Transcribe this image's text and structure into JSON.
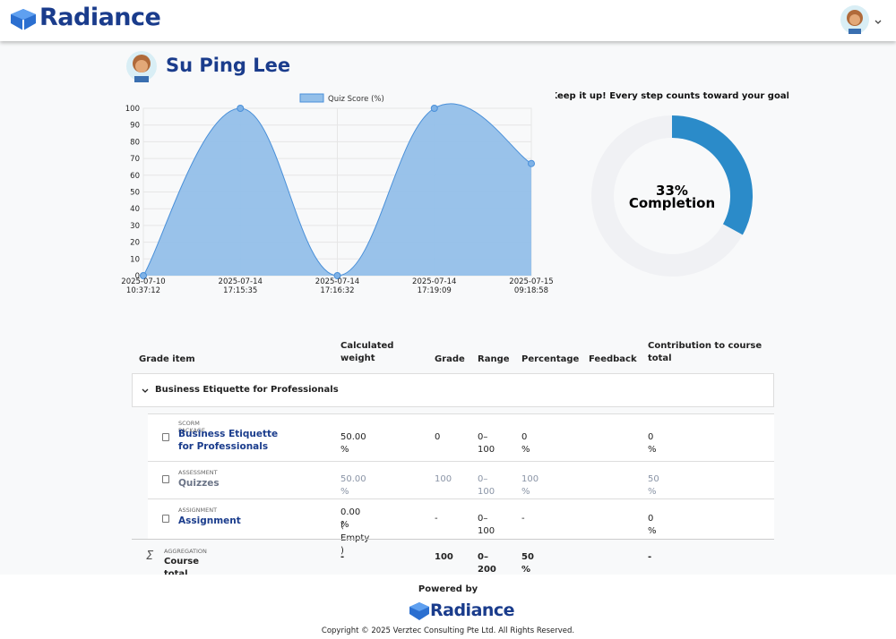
{
  "header": {
    "brand": "Radiance"
  },
  "profile": {
    "name": "Su Ping Lee"
  },
  "chart_data": [
    {
      "type": "line",
      "categories": [
        "2025-07-10 10:37:12",
        "2025-07-14 17:15:35",
        "2025-07-14 17:16:32",
        "2025-07-14 17:19:09",
        "2025-07-15 09:18:58"
      ],
      "series": [
        {
          "name": "Quiz Score (%)",
          "color": "#4a90d9",
          "fill": "#93bfe9",
          "values": [
            0,
            100,
            0,
            100,
            67
          ]
        }
      ],
      "ylim": [
        0,
        100
      ],
      "yticks": [
        0,
        10,
        20,
        30,
        40,
        50,
        60,
        70,
        80,
        90,
        100
      ],
      "grid": true
    },
    {
      "type": "donut",
      "title": "Keep it up! Every step counts toward your goal!",
      "values": [
        33
      ],
      "value_labels": [
        "33%"
      ],
      "label": "Completion",
      "color": "#2b8bc9",
      "track_color": "#f0f1f4"
    }
  ],
  "table": {
    "headers": [
      "Grade item",
      "Calculated weight",
      "Grade",
      "Range",
      "Percentage",
      "Feedback",
      "Contribution to course total"
    ],
    "section": "Business Etiquette for Professionals",
    "rows": [
      {
        "kind": "SCORM PACKAGE",
        "name": "Business Etiquette for Professionals",
        "weight": "50.00 %",
        "grade": "0",
        "range": "0–100",
        "percentage": "0 %",
        "contribution": "0 %"
      },
      {
        "kind": "ASSESSMENT",
        "name": "Quizzes",
        "weight": "50.00 %",
        "grade": "100",
        "range": "0–100",
        "percentage": "100 %",
        "contribution": "50 %"
      },
      {
        "kind": "ASSIGNMENT",
        "name": "Assignment",
        "weight": "0.00 %",
        "weight_note": "( Empty )",
        "grade": "-",
        "range": "0–100",
        "percentage": "-",
        "contribution": "0 %"
      }
    ],
    "total": {
      "kind": "AGGREGATION",
      "name": "Course total",
      "weight": "-",
      "grade": "100",
      "range": "0–200",
      "percentage": "50 %",
      "contribution": "-"
    }
  },
  "footer": {
    "powered": "Powered by",
    "brand": "Radiance",
    "copyright": "Copyright © 2025 Verztec Consulting Pte Ltd. All Rights Reserved."
  }
}
